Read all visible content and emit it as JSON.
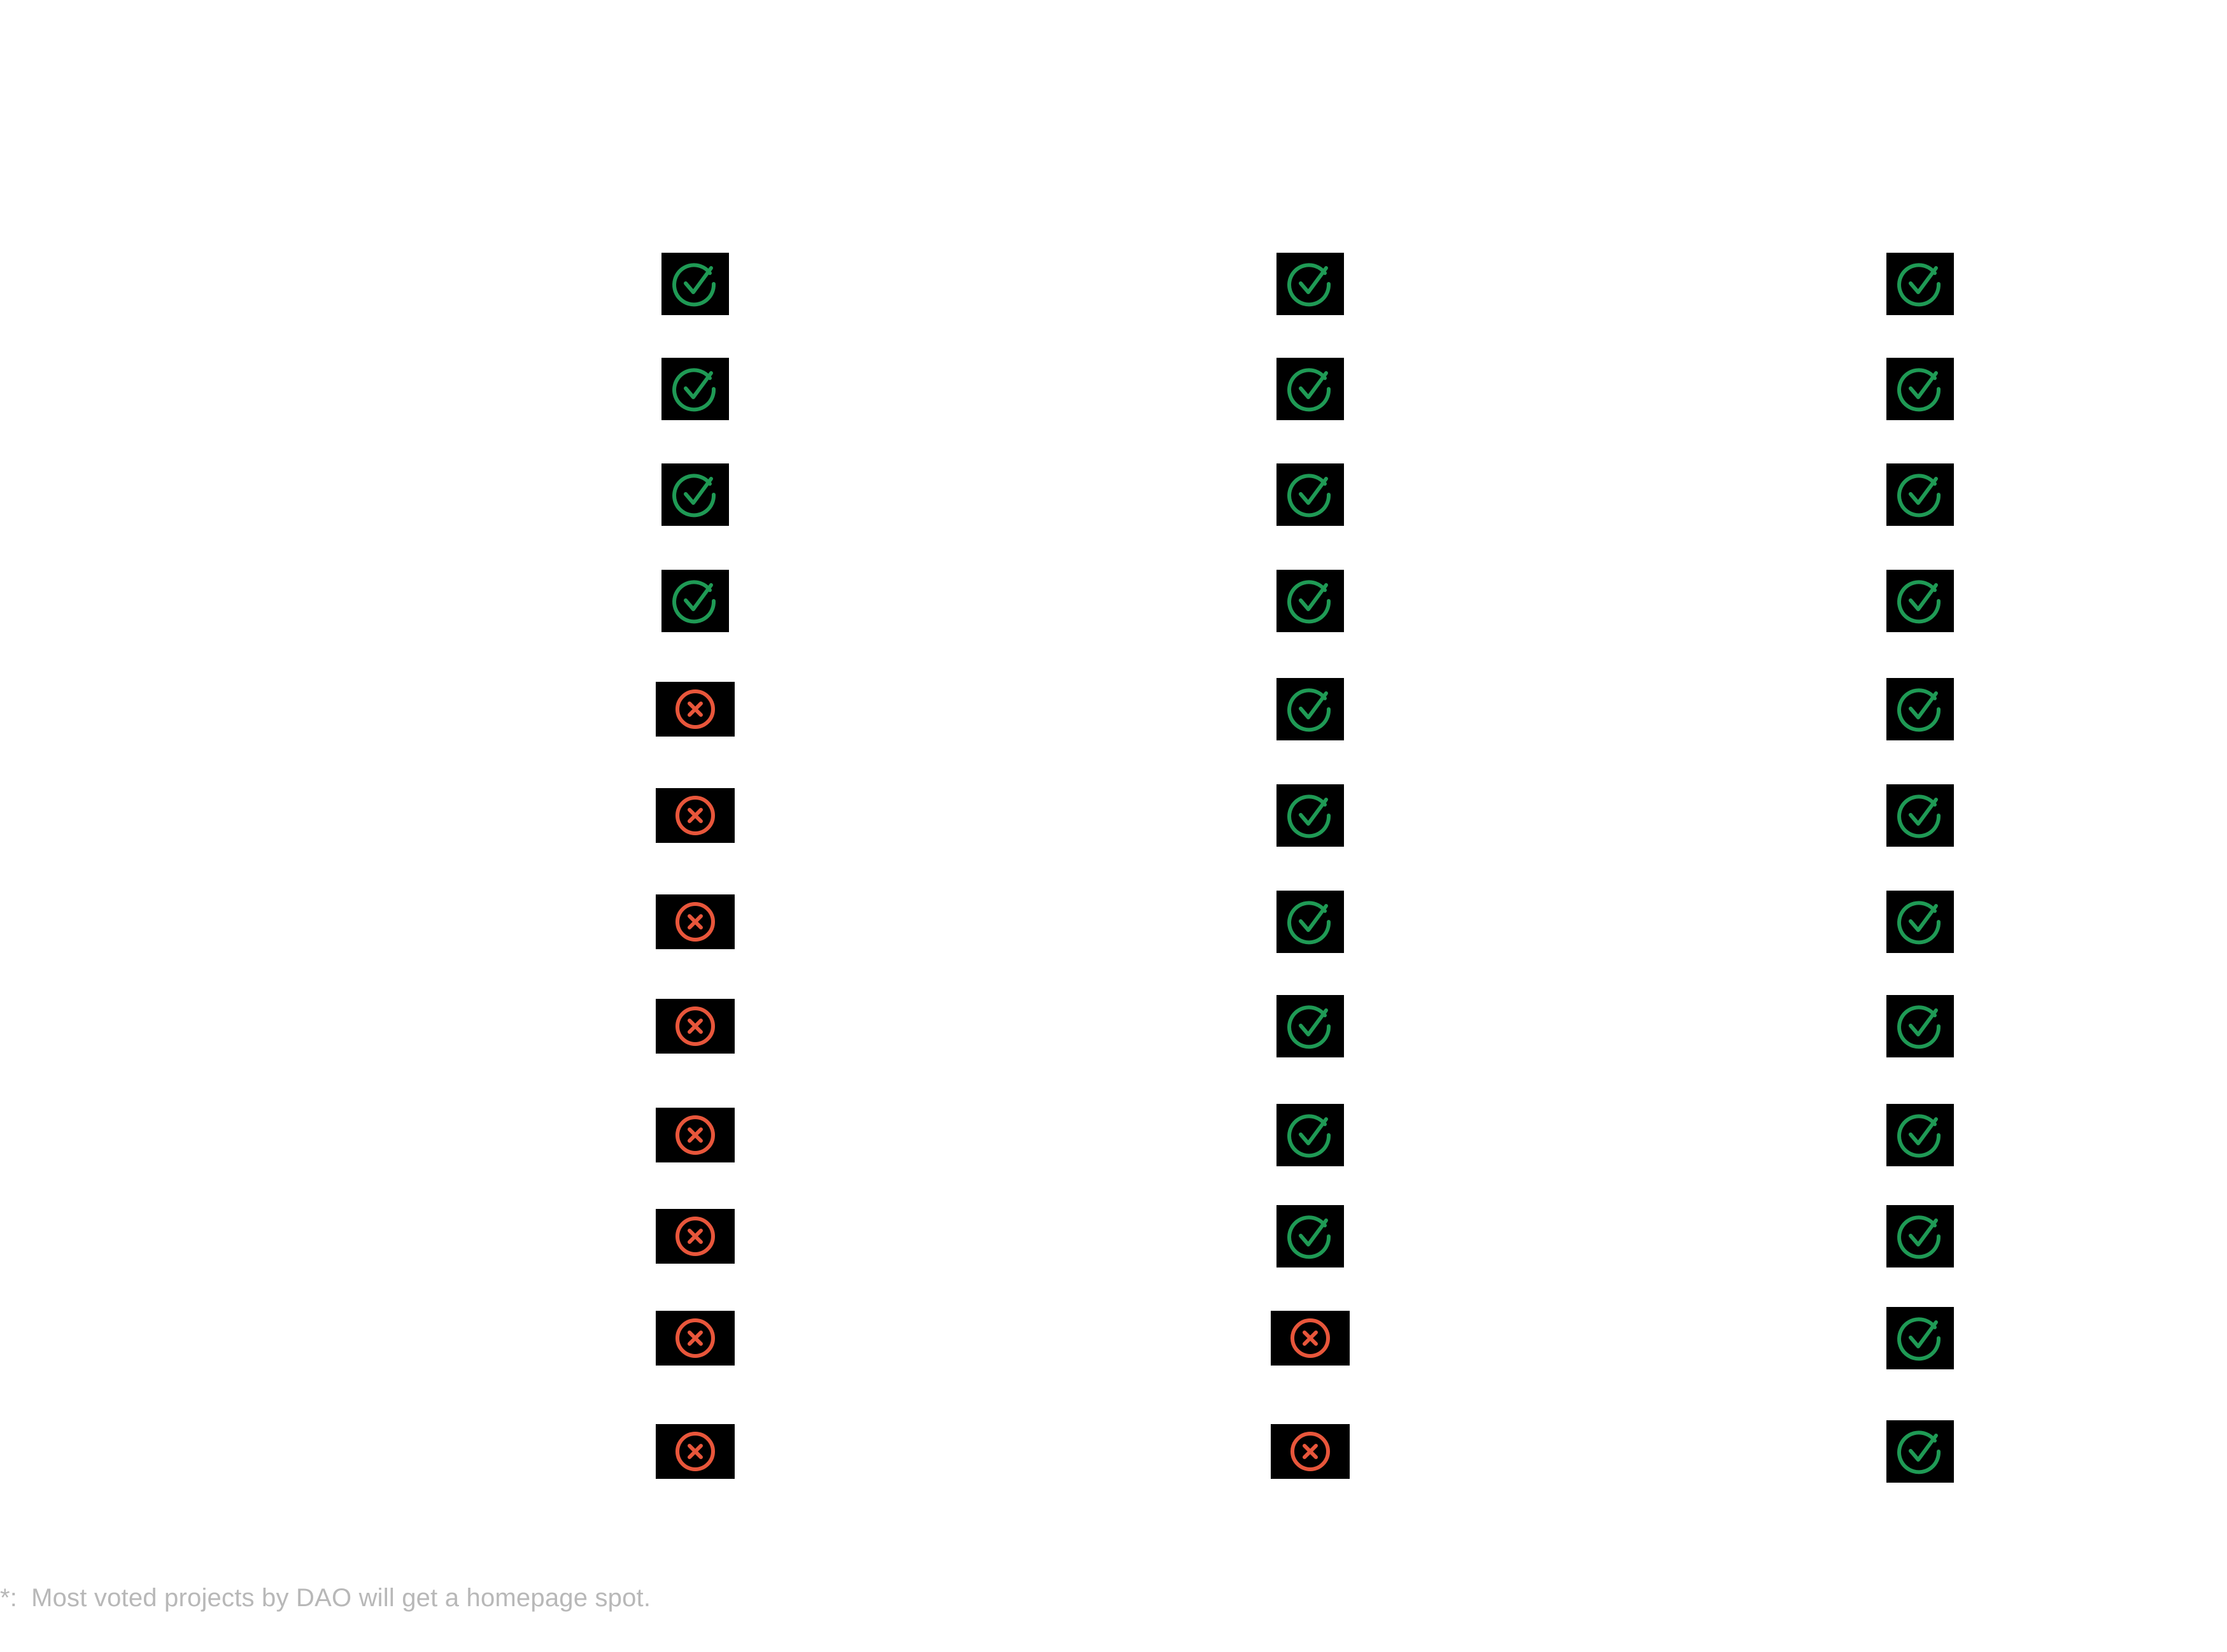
{
  "comparison": {
    "columns": [
      {
        "status": [
          "yes",
          "yes",
          "yes",
          "yes",
          "no",
          "no",
          "no",
          "no",
          "no",
          "no",
          "no",
          "no"
        ]
      },
      {
        "status": [
          "yes",
          "yes",
          "yes",
          "yes",
          "yes",
          "yes",
          "yes",
          "yes",
          "yes",
          "yes",
          "no",
          "no"
        ]
      },
      {
        "status": [
          "yes",
          "yes",
          "yes",
          "yes",
          "yes",
          "yes",
          "yes",
          "yes",
          "yes",
          "yes",
          "yes",
          "yes"
        ]
      }
    ]
  },
  "icons": {
    "yes": "check-circle-icon",
    "no": "x-circle-icon"
  },
  "colors": {
    "yes": "#1f9a55",
    "no": "#e8563b",
    "cell_background": "#000000",
    "footnote": "#b8b8b8"
  },
  "footnote": {
    "marker": "*:",
    "text": "Most voted projects by DAO will get a homepage spot."
  }
}
